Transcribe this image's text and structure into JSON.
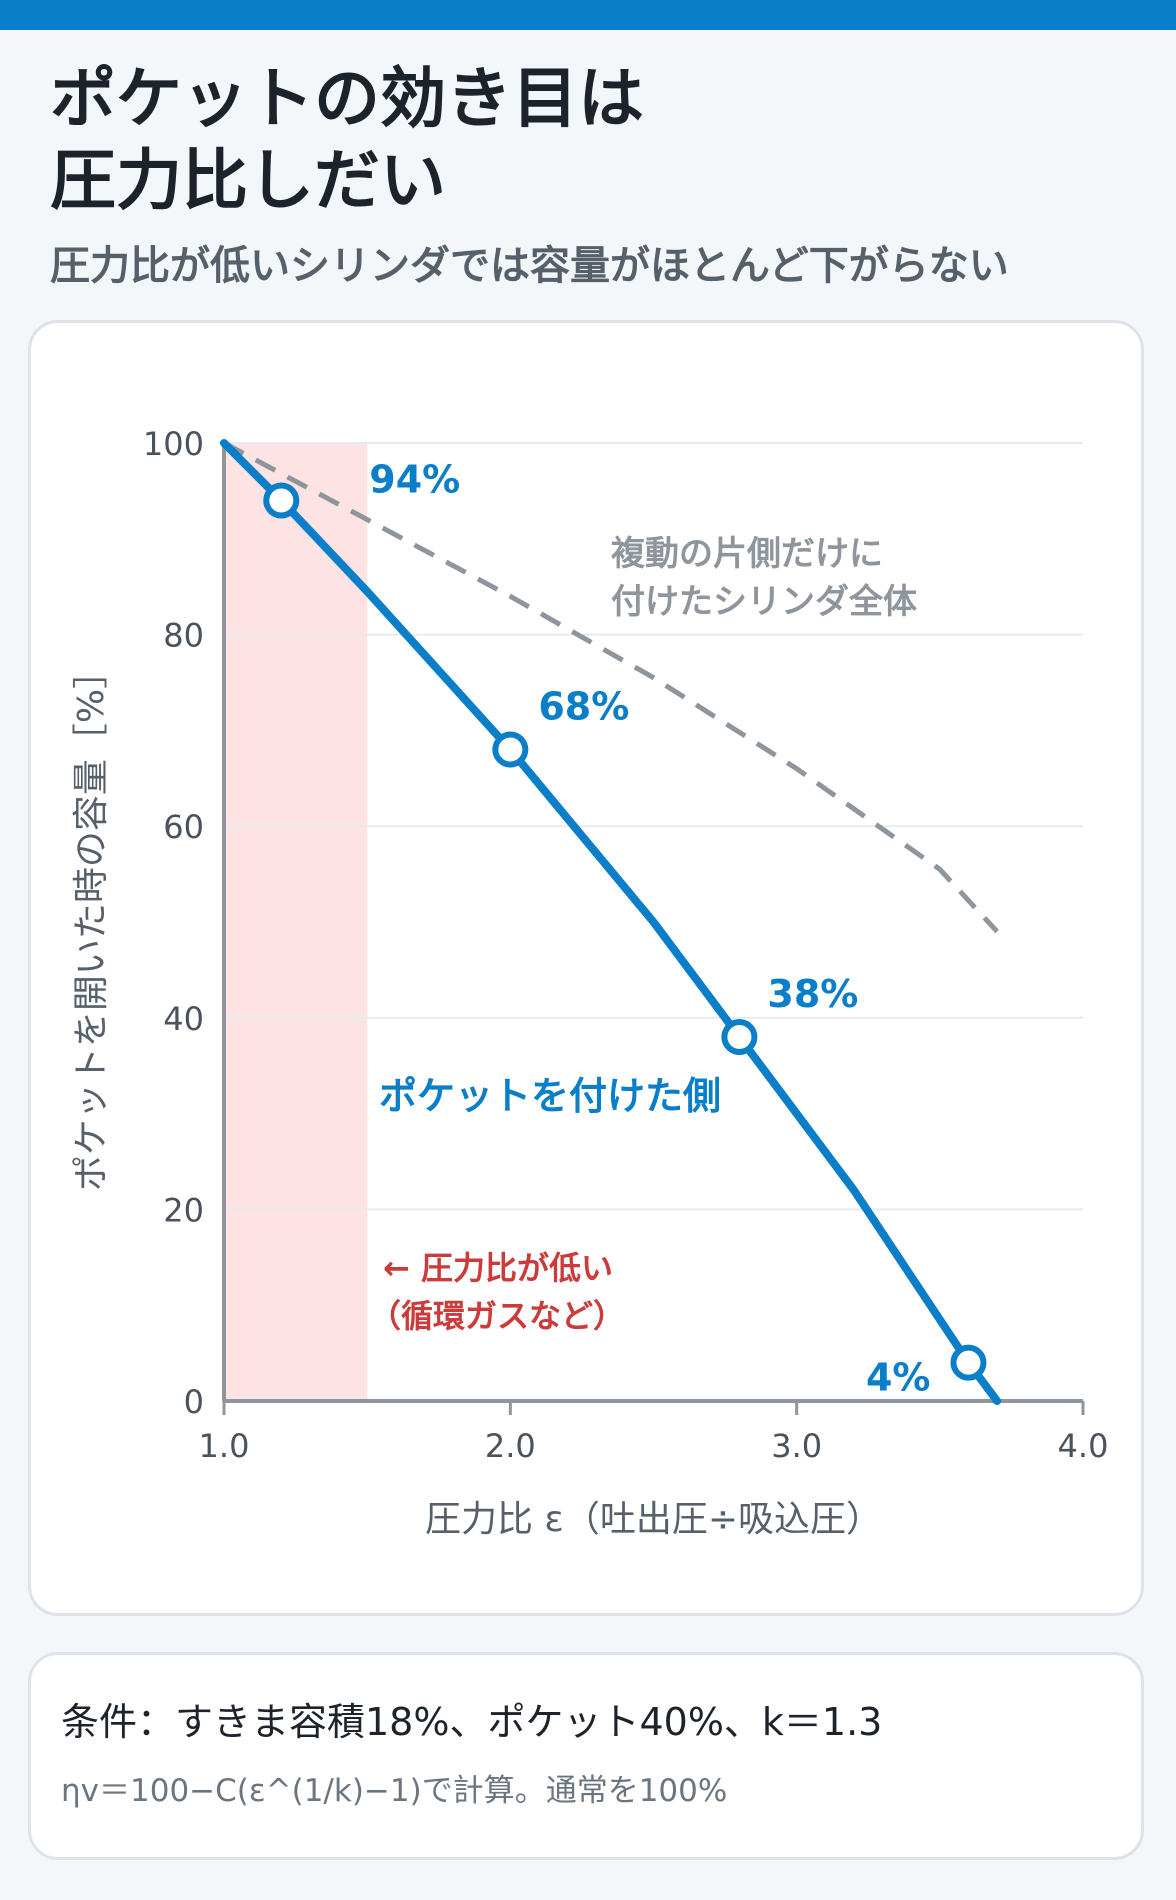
{
  "header": {
    "title_line1": "ポケットの効き目は",
    "title_line2": "圧力比しだい",
    "subtitle": "圧力比が低いシリンダでは容量がほとんど下がらない"
  },
  "colors": {
    "accent": "#0a7ec8",
    "reference_line": "#8e959c",
    "low_zone": "#fde3e4",
    "low_zone_text": "#cc3a3a"
  },
  "chart_data": {
    "type": "line",
    "xlabel": "圧力比 ε（吐出圧÷吸込圧）",
    "ylabel": "ポケットを開いた時の容量［%］",
    "xlim": [
      1.0,
      4.0
    ],
    "ylim": [
      0,
      100
    ],
    "x_ticks": [
      "1.0",
      "2.0",
      "3.0",
      "4.0"
    ],
    "y_ticks": [
      "0",
      "20",
      "40",
      "60",
      "80",
      "100"
    ],
    "grid": true,
    "series": [
      {
        "name": "ポケットを付けた側",
        "style": "solid",
        "x": [
          1.0,
          1.2,
          1.5,
          2.0,
          2.5,
          2.8,
          3.2,
          3.6,
          3.7
        ],
        "y": [
          100,
          94,
          84.5,
          68,
          50,
          38,
          22,
          4,
          0
        ],
        "markers": [
          {
            "x": 1.2,
            "y": 94,
            "label": "94%"
          },
          {
            "x": 2.0,
            "y": 68,
            "label": "68%"
          },
          {
            "x": 2.8,
            "y": 38,
            "label": "38%"
          },
          {
            "x": 3.6,
            "y": 4,
            "label": "4%"
          }
        ]
      },
      {
        "name": "複動の片側だけに付けたシリンダ全体",
        "name_lines": [
          "複動の片側だけに",
          "付けたシリンダ全体"
        ],
        "style": "dashed",
        "x": [
          1.0,
          1.5,
          2.0,
          2.5,
          3.0,
          3.5,
          3.7
        ],
        "y": [
          100,
          92,
          84,
          75.5,
          66,
          55.5,
          49
        ]
      }
    ],
    "highlight": {
      "x_range": [
        1.0,
        1.5
      ],
      "label_lines": [
        "← 圧力比が低い",
        "（循環ガスなど）"
      ]
    }
  },
  "notes": {
    "conditions": "条件：すきま容積18%、ポケット40%、k＝1.3",
    "formula": "ηv＝100−C(ε^(1/k)−1)で計算。通常を100%"
  }
}
